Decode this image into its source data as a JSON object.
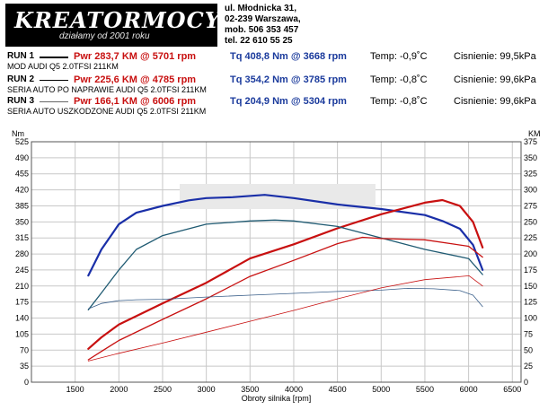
{
  "header": {
    "logo_text": "KREATORMOCY",
    "logo_tagline": "działamy od 2001 roku",
    "address_lines": [
      "ul. Młodnicka 31,",
      "02-239  Warszawa,",
      "mob.  506 353 457",
      "tel.  22 610 55 25"
    ]
  },
  "runs": [
    {
      "name": "RUN 1",
      "desc": "MOD AUDI Q5 2.0TFSI 211KM",
      "pwr": "Pwr  283,7 KM @ 5701 rpm",
      "tq": "Tq 408,8 Nm @ 3668 rpm",
      "temp": "Temp: -0,9˚C",
      "pressure": "Cisnienie: 99,5kPa",
      "line_width": 2.5
    },
    {
      "name": "RUN 2",
      "desc": "SERIA AUTO PO NAPRAWIE  AUDI Q5 2.0TFSI  211KM",
      "pwr": "Pwr  225,6 KM @ 4785 rpm",
      "tq": "Tq 354,2 Nm @ 3785 rpm",
      "temp": "Temp: -0,8˚C",
      "pressure": "Cisnienie: 99,6kPa",
      "line_width": 1.4
    },
    {
      "name": "RUN 3",
      "desc": "SERIA AUTO USZKODZONE AUDI Q5 2.0TFSI  211KM",
      "pwr": "Pwr  166,1 KM @ 6006 rpm",
      "tq": "Tq 204,9 Nm @ 5304 rpm",
      "temp": "Temp: -0,8˚C",
      "pressure": "Cisnienie: 99,6kPa",
      "line_width": 0.8
    }
  ],
  "colors": {
    "power": "#c81010",
    "torque_run1": "#1a2fa8",
    "torque_run2": "#1f5a72",
    "torque_run3": "#3a5f8a",
    "grid": "#c8c8c8"
  },
  "chart_data": {
    "type": "line",
    "xlabel": "Obroty silnika [rpm]",
    "ylabel_left": "Nm",
    "ylabel_right": "KM",
    "xlim": [
      1000,
      6600
    ],
    "ylim_left": [
      0,
      525
    ],
    "ylim_right": [
      0,
      375
    ],
    "x_ticks": [
      1500,
      2000,
      2500,
      3000,
      3500,
      4000,
      4500,
      5000,
      5500,
      6000,
      6500
    ],
    "left_ticks": [
      0,
      35,
      70,
      105,
      140,
      175,
      210,
      245,
      280,
      315,
      350,
      385,
      420,
      455,
      490,
      525
    ],
    "right_ticks": [
      0,
      25,
      50,
      75,
      100,
      125,
      150,
      175,
      200,
      225,
      250,
      275,
      300,
      325,
      350,
      375
    ],
    "grid": true,
    "series": [
      {
        "name": "RUN 1",
        "quantity": "torque",
        "unit": "Nm",
        "color": "#1a2fa8",
        "width": 2.2,
        "x": [
          1650,
          1800,
          2000,
          2200,
          2500,
          2800,
          3000,
          3300,
          3668,
          4000,
          4500,
          5000,
          5500,
          5700,
          5900,
          6050,
          6160
        ],
        "y": [
          233,
          290,
          345,
          370,
          385,
          397,
          402,
          404,
          409,
          402,
          388,
          378,
          365,
          352,
          335,
          300,
          245
        ]
      },
      {
        "name": "RUN 1",
        "quantity": "power",
        "unit": "KM",
        "color": "#c81010",
        "width": 2.2,
        "x": [
          1650,
          1800,
          2000,
          2500,
          3000,
          3500,
          4000,
          4500,
          5000,
          5500,
          5701,
          5900,
          6050,
          6160
        ],
        "y": [
          52,
          70,
          90,
          123,
          155,
          193,
          215,
          240,
          262,
          280,
          284,
          275,
          250,
          210
        ]
      },
      {
        "name": "RUN 2",
        "quantity": "torque",
        "unit": "Nm",
        "color": "#1f5a72",
        "width": 1.3,
        "x": [
          1650,
          1800,
          2000,
          2200,
          2500,
          3000,
          3500,
          3785,
          4000,
          4500,
          5000,
          5500,
          6000,
          6160
        ],
        "y": [
          158,
          195,
          245,
          290,
          320,
          345,
          352,
          354,
          352,
          340,
          315,
          290,
          270,
          235
        ]
      },
      {
        "name": "RUN 2",
        "quantity": "power",
        "unit": "KM",
        "color": "#c81010",
        "width": 1.3,
        "x": [
          1650,
          1800,
          2000,
          2500,
          3000,
          3500,
          4000,
          4500,
          4785,
          5000,
          5500,
          6000,
          6160
        ],
        "y": [
          35,
          48,
          65,
          98,
          130,
          165,
          190,
          216,
          226,
          224,
          222,
          212,
          195
        ]
      },
      {
        "name": "RUN 3",
        "quantity": "torque",
        "unit": "Nm",
        "color": "#3a5f8a",
        "width": 0.8,
        "x": [
          1650,
          1800,
          2000,
          2200,
          2500,
          3000,
          3500,
          4000,
          4500,
          5000,
          5304,
          5600,
          5900,
          6050,
          6160
        ],
        "y": [
          160,
          172,
          178,
          180,
          181,
          186,
          190,
          194,
          198,
          201,
          205,
          204,
          200,
          190,
          165
        ]
      },
      {
        "name": "RUN 3",
        "quantity": "power",
        "unit": "KM",
        "color": "#c81010",
        "width": 0.8,
        "x": [
          1650,
          2000,
          2500,
          3000,
          3500,
          4000,
          4500,
          5000,
          5500,
          6006,
          6160
        ],
        "y": [
          33,
          45,
          61,
          78,
          95,
          112,
          130,
          147,
          160,
          166,
          150
        ]
      }
    ]
  }
}
